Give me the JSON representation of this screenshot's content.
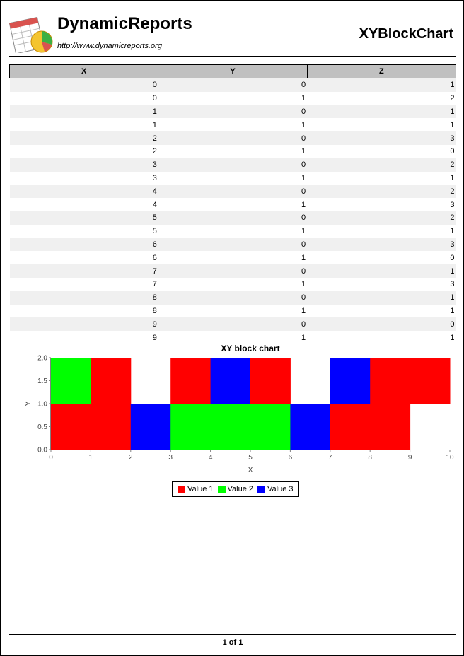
{
  "header": {
    "brand": "DynamicReports",
    "url": "http://www.dynamicreports.org",
    "report_title": "XYBlockChart"
  },
  "table": {
    "columns": [
      "X",
      "Y",
      "Z"
    ],
    "rows": [
      [
        "0",
        "0",
        "1"
      ],
      [
        "0",
        "1",
        "2"
      ],
      [
        "1",
        "0",
        "1"
      ],
      [
        "1",
        "1",
        "1"
      ],
      [
        "2",
        "0",
        "3"
      ],
      [
        "2",
        "1",
        "0"
      ],
      [
        "3",
        "0",
        "2"
      ],
      [
        "3",
        "1",
        "1"
      ],
      [
        "4",
        "0",
        "2"
      ],
      [
        "4",
        "1",
        "3"
      ],
      [
        "5",
        "0",
        "2"
      ],
      [
        "5",
        "1",
        "1"
      ],
      [
        "6",
        "0",
        "3"
      ],
      [
        "6",
        "1",
        "0"
      ],
      [
        "7",
        "0",
        "1"
      ],
      [
        "7",
        "1",
        "3"
      ],
      [
        "8",
        "0",
        "1"
      ],
      [
        "8",
        "1",
        "1"
      ],
      [
        "9",
        "0",
        "0"
      ],
      [
        "9",
        "1",
        "1"
      ]
    ]
  },
  "chart_data": {
    "type": "heatmap",
    "title": "XY block chart",
    "xlabel": "X",
    "ylabel": "Y",
    "xlim": [
      0,
      10
    ],
    "ylim": [
      0,
      2
    ],
    "x_ticks": [
      "0",
      "1",
      "2",
      "3",
      "4",
      "5",
      "6",
      "7",
      "8",
      "9",
      "10"
    ],
    "y_ticks": [
      "0.0",
      "0.5",
      "1.0",
      "1.5",
      "2.0"
    ],
    "block_width": 1,
    "block_height": 1,
    "points": [
      {
        "x": 0,
        "y": 0,
        "z": 1
      },
      {
        "x": 0,
        "y": 1,
        "z": 2
      },
      {
        "x": 1,
        "y": 0,
        "z": 1
      },
      {
        "x": 1,
        "y": 1,
        "z": 1
      },
      {
        "x": 2,
        "y": 0,
        "z": 3
      },
      {
        "x": 2,
        "y": 1,
        "z": 0
      },
      {
        "x": 3,
        "y": 0,
        "z": 2
      },
      {
        "x": 3,
        "y": 1,
        "z": 1
      },
      {
        "x": 4,
        "y": 0,
        "z": 2
      },
      {
        "x": 4,
        "y": 1,
        "z": 3
      },
      {
        "x": 5,
        "y": 0,
        "z": 2
      },
      {
        "x": 5,
        "y": 1,
        "z": 1
      },
      {
        "x": 6,
        "y": 0,
        "z": 3
      },
      {
        "x": 6,
        "y": 1,
        "z": 0
      },
      {
        "x": 7,
        "y": 0,
        "z": 1
      },
      {
        "x": 7,
        "y": 1,
        "z": 3
      },
      {
        "x": 8,
        "y": 0,
        "z": 1
      },
      {
        "x": 8,
        "y": 1,
        "z": 1
      },
      {
        "x": 9,
        "y": 0,
        "z": 0
      },
      {
        "x": 9,
        "y": 1,
        "z": 1
      }
    ],
    "legend": [
      {
        "name": "Value 1",
        "z": 1,
        "color": "#ff0000"
      },
      {
        "name": "Value 2",
        "z": 2,
        "color": "#00ff00"
      },
      {
        "name": "Value 3",
        "z": 3,
        "color": "#0000ff"
      }
    ],
    "legend_position": "bottom",
    "grid": false
  },
  "footer": {
    "page_label": "1 of 1"
  }
}
